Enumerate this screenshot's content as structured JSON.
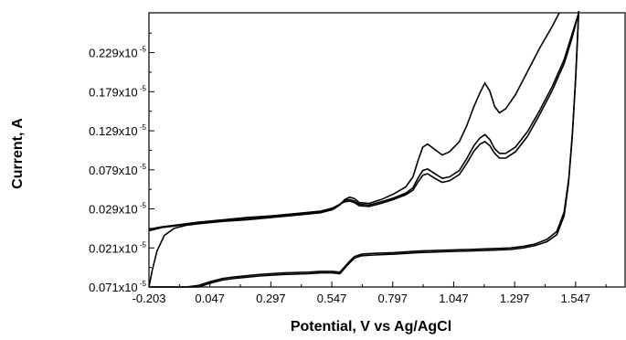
{
  "chart_data": {
    "type": "line",
    "title": "",
    "xlabel": "Potential, V vs Ag/AgCl",
    "ylabel": "Current, A",
    "xlim": [
      -0.203,
      1.75
    ],
    "ylim": [
      -0.071,
      0.28
    ],
    "grid": false,
    "legend": "none",
    "x_ticks": [
      {
        "value": -0.203,
        "label": "-0.203"
      },
      {
        "value": 0.047,
        "label": "0.047"
      },
      {
        "value": 0.297,
        "label": "0.297"
      },
      {
        "value": 0.547,
        "label": "0.547"
      },
      {
        "value": 0.797,
        "label": "0.797"
      },
      {
        "value": 1.047,
        "label": "1.047"
      },
      {
        "value": 1.297,
        "label": "1.297"
      },
      {
        "value": 1.547,
        "label": "1.547"
      }
    ],
    "y_ticks": [
      {
        "value": -0.071,
        "mantissa": "0.071x10",
        "exponent": "-5"
      },
      {
        "value": -0.021,
        "mantissa": "0.021x10",
        "exponent": "-5"
      },
      {
        "value": 0.029,
        "mantissa": "0.029x10",
        "exponent": "-5"
      },
      {
        "value": 0.079,
        "mantissa": "0.079x10",
        "exponent": "-5"
      },
      {
        "value": 0.129,
        "mantissa": "0.129x10",
        "exponent": "-5"
      },
      {
        "value": 0.179,
        "mantissa": "0.179x10",
        "exponent": "-5"
      },
      {
        "value": 0.229,
        "mantissa": "0.229x10",
        "exponent": "-5"
      }
    ],
    "series": [
      {
        "x": [
          1.56,
          1.548,
          1.535,
          1.52,
          1.5,
          1.47,
          1.43,
          1.38,
          1.33,
          1.28,
          1.2,
          1.1,
          1.0,
          0.9,
          0.8,
          0.72,
          0.67,
          0.64,
          0.62,
          0.6,
          0.58,
          0.55,
          0.5,
          0.45,
          0.35,
          0.25,
          0.15,
          0.1,
          0.05,
          0.0,
          -0.05,
          -0.1,
          -0.15,
          -0.203
        ],
        "y": [
          0.285,
          0.2,
          0.13,
          0.07,
          0.025,
          0.0,
          -0.01,
          -0.016,
          -0.019,
          -0.021,
          -0.022,
          -0.023,
          -0.024,
          -0.025,
          -0.027,
          -0.028,
          -0.029,
          -0.032,
          -0.038,
          -0.045,
          -0.052,
          -0.051,
          -0.051,
          -0.052,
          -0.053,
          -0.055,
          -0.058,
          -0.06,
          -0.064,
          -0.069,
          -0.073,
          -0.077,
          -0.079,
          -0.08
        ]
      },
      {
        "x": [
          1.56,
          1.546,
          1.533,
          1.518,
          1.5,
          1.47,
          1.43,
          1.38,
          1.33,
          1.28,
          1.2,
          1.1,
          1.0,
          0.9,
          0.8,
          0.72,
          0.67,
          0.64,
          0.62,
          0.6,
          0.58,
          0.55,
          0.5,
          0.45,
          0.35,
          0.25,
          0.15,
          0.1,
          0.05,
          0.0,
          -0.05,
          -0.1,
          -0.15,
          -0.203
        ],
        "y": [
          0.285,
          0.19,
          0.12,
          0.062,
          0.02,
          -0.004,
          -0.013,
          -0.018,
          -0.021,
          -0.023,
          -0.024,
          -0.025,
          -0.026,
          -0.027,
          -0.029,
          -0.03,
          -0.031,
          -0.034,
          -0.04,
          -0.047,
          -0.054,
          -0.053,
          -0.053,
          -0.054,
          -0.055,
          -0.057,
          -0.06,
          -0.062,
          -0.066,
          -0.071,
          -0.075,
          -0.079,
          -0.081,
          -0.082
        ]
      },
      {
        "x": [
          -0.203,
          -0.19,
          -0.17,
          -0.14,
          -0.1,
          -0.05,
          0.0,
          0.1,
          0.2,
          0.3,
          0.4,
          0.5,
          0.55,
          0.58,
          0.6,
          0.62,
          0.64,
          0.66,
          0.7,
          0.75,
          0.8,
          0.85,
          0.88,
          0.9,
          0.92,
          0.94,
          0.97,
          1.0,
          1.03,
          1.07,
          1.1,
          1.13,
          1.155,
          1.175,
          1.195,
          1.215,
          1.235,
          1.26,
          1.3,
          1.35,
          1.4,
          1.45,
          1.48
        ],
        "y": [
          -0.072,
          -0.05,
          -0.025,
          -0.005,
          0.004,
          0.008,
          0.01,
          0.013,
          0.015,
          0.018,
          0.021,
          0.024,
          0.028,
          0.034,
          0.041,
          0.044,
          0.042,
          0.037,
          0.036,
          0.041,
          0.048,
          0.057,
          0.07,
          0.09,
          0.108,
          0.112,
          0.105,
          0.098,
          0.102,
          0.115,
          0.135,
          0.16,
          0.178,
          0.19,
          0.18,
          0.16,
          0.152,
          0.157,
          0.175,
          0.205,
          0.235,
          0.262,
          0.28
        ]
      },
      {
        "x": [
          -0.203,
          -0.15,
          -0.1,
          -0.05,
          0.0,
          0.1,
          0.2,
          0.3,
          0.4,
          0.5,
          0.55,
          0.58,
          0.6,
          0.62,
          0.64,
          0.66,
          0.7,
          0.75,
          0.8,
          0.85,
          0.88,
          0.9,
          0.92,
          0.94,
          0.97,
          1.0,
          1.03,
          1.07,
          1.1,
          1.13,
          1.155,
          1.175,
          1.195,
          1.215,
          1.235,
          1.26,
          1.3,
          1.35,
          1.4,
          1.45,
          1.5,
          1.53,
          1.56
        ],
        "y": [
          0.001,
          0.005,
          0.007,
          0.009,
          0.011,
          0.014,
          0.017,
          0.019,
          0.022,
          0.025,
          0.029,
          0.035,
          0.04,
          0.041,
          0.039,
          0.035,
          0.034,
          0.038,
          0.043,
          0.049,
          0.056,
          0.068,
          0.078,
          0.08,
          0.074,
          0.068,
          0.07,
          0.078,
          0.093,
          0.11,
          0.12,
          0.124,
          0.118,
          0.106,
          0.1,
          0.1,
          0.108,
          0.128,
          0.155,
          0.185,
          0.22,
          0.25,
          0.28
        ]
      },
      {
        "x": [
          -0.203,
          -0.15,
          -0.1,
          -0.05,
          0.0,
          0.1,
          0.2,
          0.3,
          0.4,
          0.5,
          0.55,
          0.58,
          0.6,
          0.62,
          0.64,
          0.66,
          0.7,
          0.75,
          0.8,
          0.85,
          0.88,
          0.9,
          0.92,
          0.94,
          0.97,
          1.0,
          1.03,
          1.07,
          1.1,
          1.13,
          1.155,
          1.175,
          1.195,
          1.215,
          1.235,
          1.26,
          1.3,
          1.35,
          1.4,
          1.45,
          1.5,
          1.53,
          1.56
        ],
        "y": [
          0.003,
          0.006,
          0.008,
          0.01,
          0.012,
          0.015,
          0.018,
          0.02,
          0.023,
          0.026,
          0.03,
          0.035,
          0.038,
          0.039,
          0.037,
          0.033,
          0.032,
          0.036,
          0.041,
          0.047,
          0.053,
          0.063,
          0.072,
          0.074,
          0.068,
          0.063,
          0.065,
          0.073,
          0.087,
          0.103,
          0.112,
          0.115,
          0.11,
          0.1,
          0.094,
          0.094,
          0.102,
          0.122,
          0.15,
          0.18,
          0.215,
          0.245,
          0.28
        ]
      }
    ]
  }
}
